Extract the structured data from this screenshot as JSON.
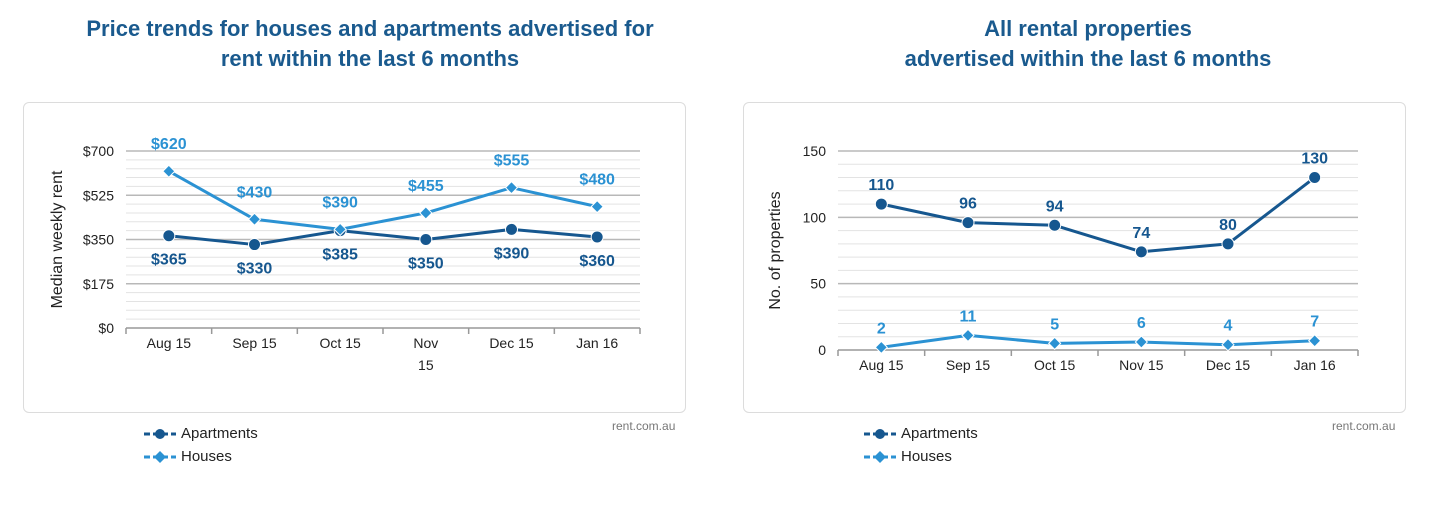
{
  "charts": [
    {
      "title_lines": [
        "Price trends for houses and apartments advertised for",
        "rent within the last 6 months"
      ],
      "source": "rent.com.au",
      "colors": {
        "apartments": "#16578f",
        "houses": "#2b92d3"
      },
      "chart_data": {
        "type": "line",
        "x": [
          "Aug 15",
          "Sep 15",
          "Oct 15",
          "Nov 15",
          "Dec 15",
          "Jan 16"
        ],
        "y_ticks": [
          "$0",
          "$175",
          "$350",
          "$525",
          "$700"
        ],
        "ylim": [
          0,
          700
        ],
        "ylabel": "Median weekly rent",
        "legend_position": "bottom-left",
        "series": [
          {
            "name": "Apartments",
            "values": [
              365,
              330,
              385,
              350,
              390,
              360
            ],
            "labels": [
              "$365",
              "$330",
              "$385",
              "$350",
              "$390",
              "$360"
            ]
          },
          {
            "name": "Houses",
            "values": [
              620,
              430,
              390,
              455,
              555,
              480
            ],
            "labels": [
              "$620",
              "$430",
              "$390",
              "$455",
              "$555",
              "$480"
            ]
          }
        ]
      }
    },
    {
      "title_lines": [
        "All rental properties",
        "advertised within the last 6 months"
      ],
      "source": "rent.com.au",
      "colors": {
        "apartments": "#16578f",
        "houses": "#2b92d3"
      },
      "chart_data": {
        "type": "line",
        "x": [
          "Aug 15",
          "Sep 15",
          "Oct 15",
          "Nov 15",
          "Dec 15",
          "Jan 16"
        ],
        "y_ticks": [
          "0",
          "50",
          "100",
          "150"
        ],
        "ylim": [
          0,
          150
        ],
        "ylabel": "No. of properties",
        "legend_position": "bottom-left",
        "series": [
          {
            "name": "Apartments",
            "values": [
              110,
              96,
              94,
              74,
              80,
              130
            ],
            "labels": [
              "110",
              "96",
              "94",
              "74",
              "80",
              "130"
            ]
          },
          {
            "name": "Houses",
            "values": [
              2,
              11,
              5,
              6,
              4,
              7
            ],
            "labels": [
              "2",
              "11",
              "5",
              "6",
              "4",
              "7"
            ]
          }
        ]
      }
    }
  ]
}
